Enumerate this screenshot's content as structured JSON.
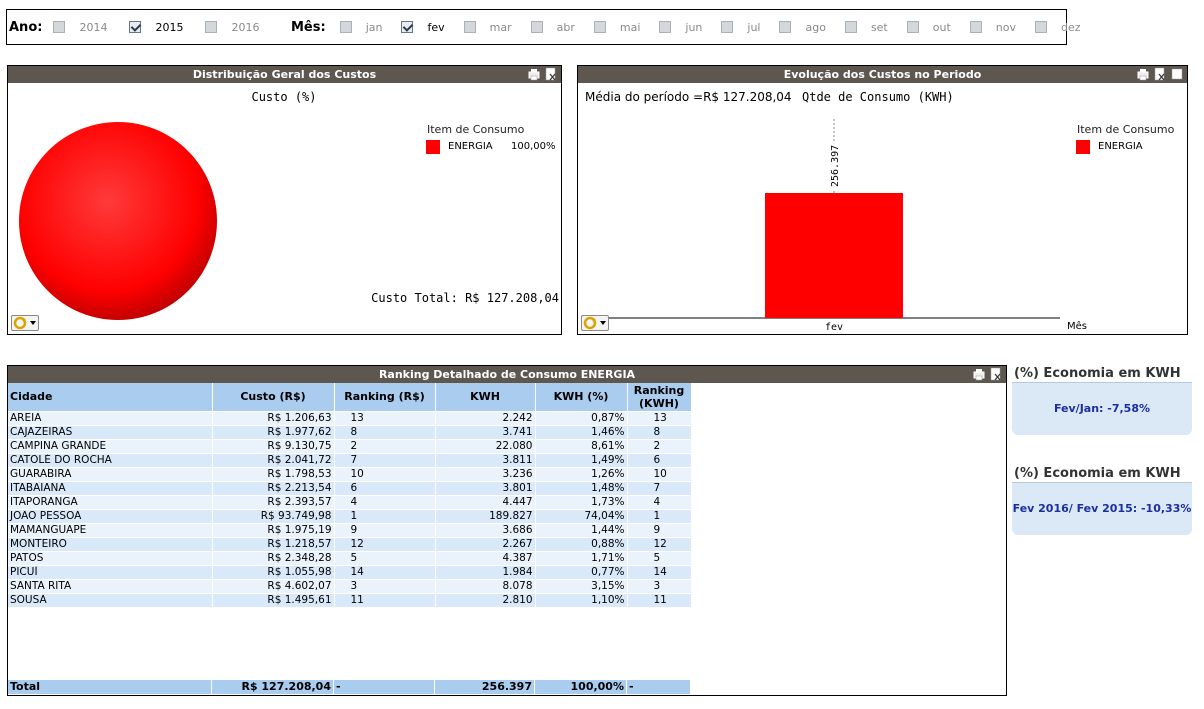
{
  "filters": {
    "year_label": "Ano:",
    "years": [
      {
        "label": "2014",
        "checked": false
      },
      {
        "label": "2015",
        "checked": true
      },
      {
        "label": "2016",
        "checked": false
      }
    ],
    "month_label": "Mês:",
    "months": [
      {
        "label": "jan",
        "checked": false
      },
      {
        "label": "fev",
        "checked": true
      },
      {
        "label": "mar",
        "checked": false
      },
      {
        "label": "abr",
        "checked": false
      },
      {
        "label": "mai",
        "checked": false
      },
      {
        "label": "jun",
        "checked": false
      },
      {
        "label": "jul",
        "checked": false
      },
      {
        "label": "ago",
        "checked": false
      },
      {
        "label": "set",
        "checked": false
      },
      {
        "label": "out",
        "checked": false
      },
      {
        "label": "nov",
        "checked": false
      },
      {
        "label": "dez",
        "checked": false
      }
    ]
  },
  "pie_panel": {
    "header": "Distribuição Geral dos Custos",
    "title": "Custo (%)",
    "legend_title": "Item de Consumo",
    "legend_item": "ENERGIA",
    "legend_value": "100,00%",
    "total": "Custo Total: R$ 127.208,04"
  },
  "bar_panel": {
    "header": "Evolução dos Custos no Periodo",
    "avg_text": "Média do período =R$ 127.208,04",
    "title": "Qtde de Consumo (KWH)",
    "legend_title": "Item de Consumo",
    "legend_item": "ENERGIA",
    "x_axis_label": "Mês"
  },
  "chart_data": [
    {
      "type": "pie",
      "title": "Custo (%)",
      "categories": [
        "ENERGIA"
      ],
      "values": [
        100.0
      ],
      "legend_title": "Item de Consumo"
    },
    {
      "type": "bar",
      "title": "Qtde de Consumo (KWH)",
      "categories": [
        "fev"
      ],
      "series": [
        {
          "name": "ENERGIA",
          "values": [
            256397
          ]
        }
      ],
      "data_labels": [
        "256.397"
      ],
      "xlabel": "Mês",
      "legend_title": "Item de Consumo"
    }
  ],
  "table_panel": {
    "header": "Ranking Detalhado de Consumo ENERGIA",
    "columns": [
      "Cidade",
      "Custo (R$)",
      "Ranking (R$)",
      "KWH",
      "KWH (%)",
      "Ranking (KWH)"
    ],
    "rows": [
      [
        "AREIA",
        "R$ 1.206,63",
        "13",
        "2.242",
        "0,87%",
        "13"
      ],
      [
        "CAJAZEIRAS",
        "R$ 1.977,62",
        "8",
        "3.741",
        "1,46%",
        "8"
      ],
      [
        "CAMPINA GRANDE",
        "R$ 9.130,75",
        "2",
        "22.080",
        "8,61%",
        "2"
      ],
      [
        "CATOLÉ DO ROCHA",
        "R$ 2.041,72",
        "7",
        "3.811",
        "1,49%",
        "6"
      ],
      [
        "GUARABIRA",
        "R$ 1.798,53",
        "10",
        "3.236",
        "1,26%",
        "10"
      ],
      [
        "ITABAIANA",
        "R$ 2.213,54",
        "6",
        "3.801",
        "1,48%",
        "7"
      ],
      [
        "ITAPORANGA",
        "R$ 2.393,57",
        "4",
        "4.447",
        "1,73%",
        "4"
      ],
      [
        "JOÃO PESSOA",
        "R$ 93.749,98",
        "1",
        "189.827",
        "74,04%",
        "1"
      ],
      [
        "MAMANGUAPE",
        "R$ 1.975,19",
        "9",
        "3.686",
        "1,44%",
        "9"
      ],
      [
        "MONTEIRO",
        "R$ 1.218,57",
        "12",
        "2.267",
        "0,88%",
        "12"
      ],
      [
        "PATOS",
        "R$ 2.348,28",
        "5",
        "4.387",
        "1,71%",
        "5"
      ],
      [
        "PICUÍ",
        "R$ 1.055,98",
        "14",
        "1.984",
        "0,77%",
        "14"
      ],
      [
        "SANTA RITA",
        "R$ 4.602,07",
        "3",
        "8.078",
        "3,15%",
        "3"
      ],
      [
        "SOUSA",
        "R$ 1.495,61",
        "11",
        "2.810",
        "1,10%",
        "11"
      ]
    ],
    "total": [
      "Total",
      "R$ 127.208,04",
      "-",
      "256.397",
      "100,00%",
      "-"
    ]
  },
  "cards": [
    {
      "title": "(%) Economia em KWH",
      "value": "Fev/Jan: -7,58%"
    },
    {
      "title": "(%) Economia em KWH",
      "value": "Fev 2016/ Fev 2015: -10,33%"
    }
  ],
  "colors": {
    "header_bg": "#5e5750",
    "series_red": "#ff0000",
    "table_header": "#a9ccef",
    "card_value": "#1a2fa0"
  }
}
